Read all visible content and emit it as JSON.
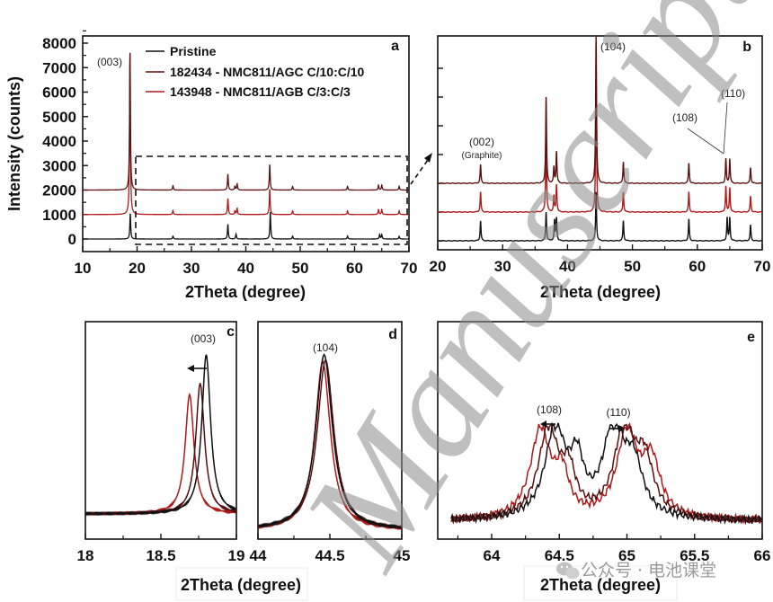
{
  "figure": {
    "watermark_text": "Manuscript",
    "social_watermark": "公众号 · 电池课堂"
  },
  "legend": {
    "items": [
      {
        "label": "Pristine",
        "color": "#111111"
      },
      {
        "label": "182434 - NMC811/AGC C/10:C/10",
        "color": "#5a0f0f"
      },
      {
        "label": "143948 - NMC811/AGB C/3:C/3",
        "color": "#b01818"
      }
    ]
  },
  "chart_data": [
    {
      "panel": "a",
      "type": "line",
      "title": "",
      "xlabel": "2Theta (degree)",
      "ylabel": "Intensity (counts)",
      "xlim": [
        10,
        70
      ],
      "ylim": [
        -300,
        8300
      ],
      "xticks": [
        10,
        20,
        30,
        40,
        50,
        60,
        70
      ],
      "yticks": [
        0,
        1000,
        2000,
        3000,
        4000,
        5000,
        6000,
        7000,
        8000
      ],
      "grid": false,
      "legend_position": "upper center",
      "annotations": [
        {
          "text": "(003)",
          "x": 18.7,
          "y": 7400
        }
      ],
      "inset_box": {
        "x": [
          20,
          70
        ],
        "y": [
          -200,
          3500
        ],
        "style": "dashed"
      },
      "series": [
        {
          "name": "Pristine",
          "offset": 0,
          "peaks": [
            [
              18.75,
              1050
            ],
            [
              26.6,
              120
            ],
            [
              36.7,
              600
            ],
            [
              38.2,
              200
            ],
            [
              44.5,
              1100
            ],
            [
              48.6,
              120
            ],
            [
              58.7,
              130
            ],
            [
              64.6,
              180
            ],
            [
              65.0,
              180
            ],
            [
              68.2,
              110
            ]
          ]
        },
        {
          "name": "182434 - NMC811/AGC C/10:C/10",
          "offset": 2000,
          "peaks": [
            [
              18.7,
              5600
            ],
            [
              26.6,
              180
            ],
            [
              36.7,
              650
            ],
            [
              38.0,
              150
            ],
            [
              38.4,
              250
            ],
            [
              44.4,
              1050
            ],
            [
              48.6,
              150
            ],
            [
              58.7,
              150
            ],
            [
              64.4,
              200
            ],
            [
              65.0,
              200
            ],
            [
              68.2,
              150
            ]
          ]
        },
        {
          "name": "143948 - NMC811/AGB C/3:C/3",
          "offset": 1000,
          "peaks": [
            [
              18.7,
              6600
            ],
            [
              26.6,
              170
            ],
            [
              36.7,
              650
            ],
            [
              38.0,
              150
            ],
            [
              38.4,
              250
            ],
            [
              44.4,
              1050
            ],
            [
              48.6,
              150
            ],
            [
              58.7,
              150
            ],
            [
              64.4,
              200
            ],
            [
              65.0,
              200
            ],
            [
              68.2,
              150
            ]
          ]
        }
      ]
    },
    {
      "panel": "b",
      "type": "line",
      "xlabel": "2Theta (degree)",
      "ylabel": "",
      "xlim": [
        20,
        70
      ],
      "xticks": [
        20,
        30,
        40,
        50,
        60,
        70
      ],
      "grid": false,
      "annotations": [
        {
          "text": "(002)",
          "sub": "(Graphite)",
          "x": 26.6
        },
        {
          "text": "(104)",
          "x": 44.5
        },
        {
          "text": "(108)",
          "x": 64.4
        },
        {
          "text": "(110)",
          "x": 65.0
        }
      ],
      "series": [
        {
          "name": "Pristine",
          "offset": 0,
          "peaks": [
            [
              26.6,
              700
            ],
            [
              36.7,
              1000
            ],
            [
              38.0,
              700
            ],
            [
              38.3,
              780
            ],
            [
              44.4,
              1700
            ],
            [
              48.6,
              700
            ],
            [
              58.7,
              750
            ],
            [
              64.6,
              800
            ],
            [
              65.0,
              800
            ],
            [
              68.2,
              550
            ]
          ]
        },
        {
          "name": "143948 - NMC811/AGB C/3:C/3",
          "offset": 1000,
          "peaks": [
            [
              26.6,
              700
            ],
            [
              36.7,
              2800
            ],
            [
              37.9,
              550
            ],
            [
              38.3,
              950
            ],
            [
              44.4,
              5000
            ],
            [
              48.6,
              700
            ],
            [
              58.7,
              700
            ],
            [
              64.4,
              900
            ],
            [
              65.0,
              850
            ],
            [
              68.2,
              550
            ]
          ]
        },
        {
          "name": "182434 - NMC811/AGC C/10:C/10",
          "offset": 2000,
          "peaks": [
            [
              26.6,
              650
            ],
            [
              36.7,
              3000
            ],
            [
              37.9,
              550
            ],
            [
              38.3,
              1100
            ],
            [
              44.4,
              5200
            ],
            [
              48.6,
              750
            ],
            [
              58.7,
              700
            ],
            [
              64.4,
              850
            ],
            [
              65.0,
              850
            ],
            [
              68.2,
              550
            ]
          ]
        }
      ]
    },
    {
      "panel": "c",
      "type": "line",
      "xlabel": "2Theta (degree)",
      "xlim": [
        18,
        19
      ],
      "xticks": [
        18,
        18.5,
        19
      ],
      "annotations": [
        {
          "text": "(003)",
          "x": 18.75,
          "arrow": "left"
        }
      ],
      "series": [
        {
          "name": "Pristine",
          "center": 18.8,
          "height": 1.0,
          "width": 0.035
        },
        {
          "name": "182434 - NMC811/AGC C/10:C/10",
          "center": 18.76,
          "height": 0.82,
          "width": 0.035
        },
        {
          "name": "143948 - NMC811/AGB C/3:C/3",
          "center": 18.69,
          "height": 0.75,
          "width": 0.035
        }
      ]
    },
    {
      "panel": "d",
      "type": "line",
      "xlabel": "2Theta (degree)",
      "xlim": [
        44,
        45
      ],
      "xticks": [
        44,
        44.5,
        45
      ],
      "annotations": [
        {
          "text": "(104)",
          "x": 44.48
        }
      ],
      "series": [
        {
          "name": "Pristine",
          "center": 44.46,
          "height": 1.0,
          "width": 0.07
        },
        {
          "name": "182434 - NMC811/AGC C/10:C/10",
          "center": 44.47,
          "height": 0.97,
          "width": 0.07
        },
        {
          "name": "143948 - NMC811/AGB C/3:C/3",
          "center": 44.45,
          "height": 0.96,
          "width": 0.065
        }
      ]
    },
    {
      "panel": "e",
      "type": "line",
      "xlabel": "2Theta (degree)",
      "xlim": [
        63.7,
        66
      ],
      "xticks": [
        64,
        64.5,
        65,
        65.5,
        66
      ],
      "annotations": [
        {
          "text": "(108)",
          "x": 64.4,
          "arrow": "left"
        },
        {
          "text": "(110)",
          "x": 64.95,
          "arrow": "right"
        }
      ],
      "series": [
        {
          "name": "Pristine",
          "peaks": [
            [
              64.47,
              1.0,
              0.09
            ],
            [
              64.63,
              0.55,
              0.06
            ],
            [
              64.9,
              1.0,
              0.09
            ],
            [
              65.05,
              0.55,
              0.08
            ]
          ]
        },
        {
          "name": "182434 - NMC811/AGC C/10:C/10",
          "peaks": [
            [
              64.42,
              1.0,
              0.09
            ],
            [
              64.57,
              0.45,
              0.06
            ],
            [
              64.98,
              0.98,
              0.09
            ],
            [
              65.13,
              0.6,
              0.08
            ]
          ]
        },
        {
          "name": "143948 - NMC811/AGB C/3:C/3",
          "peaks": [
            [
              64.36,
              0.98,
              0.09
            ],
            [
              64.52,
              0.45,
              0.06
            ],
            [
              65.0,
              0.95,
              0.09
            ],
            [
              65.18,
              0.62,
              0.08
            ]
          ]
        }
      ]
    }
  ]
}
